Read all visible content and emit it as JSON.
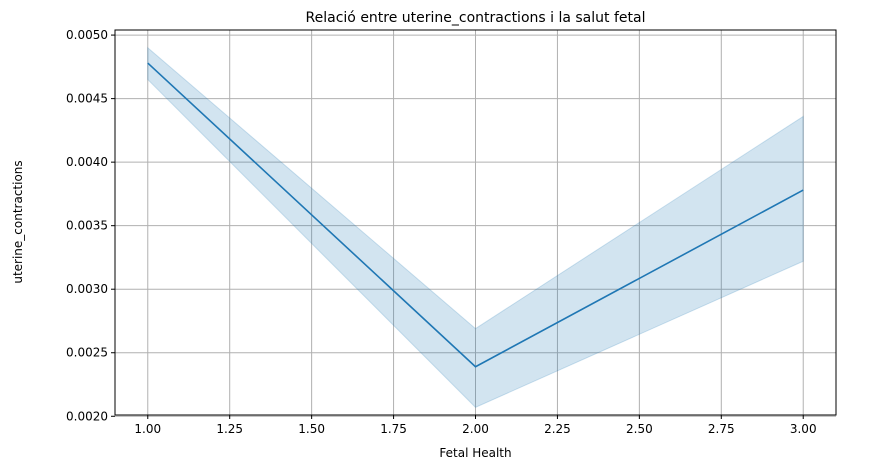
{
  "chart_data": {
    "type": "line",
    "title": "Relació entre uterine_contractions i la salut fetal",
    "xlabel": "Fetal Health",
    "ylabel": "uterine_contractions",
    "xlim": [
      0.9,
      3.1
    ],
    "ylim": [
      0.00201,
      0.00504
    ],
    "grid": true,
    "x_ticks": [
      1.0,
      1.25,
      1.5,
      1.75,
      2.0,
      2.25,
      2.5,
      2.75,
      3.0
    ],
    "x_tick_labels": [
      "1.00",
      "1.25",
      "1.50",
      "1.75",
      "2.00",
      "2.25",
      "2.50",
      "2.75",
      "3.00"
    ],
    "y_ticks": [
      0.002,
      0.0025,
      0.003,
      0.0035,
      0.004,
      0.0045,
      0.005
    ],
    "y_tick_labels": [
      "0.0020",
      "0.0025",
      "0.0030",
      "0.0035",
      "0.0040",
      "0.0045",
      "0.0050"
    ],
    "series": [
      {
        "x": [
          1.0,
          2.0,
          3.0
        ],
        "values": [
          0.00478,
          0.00239,
          0.00378
        ],
        "ci_lower": [
          0.00465,
          0.00207,
          0.00322
        ],
        "ci_upper": [
          0.0049,
          0.00269,
          0.00436
        ],
        "color": "#1f77b4",
        "band_color": "#1f77b4"
      }
    ]
  }
}
